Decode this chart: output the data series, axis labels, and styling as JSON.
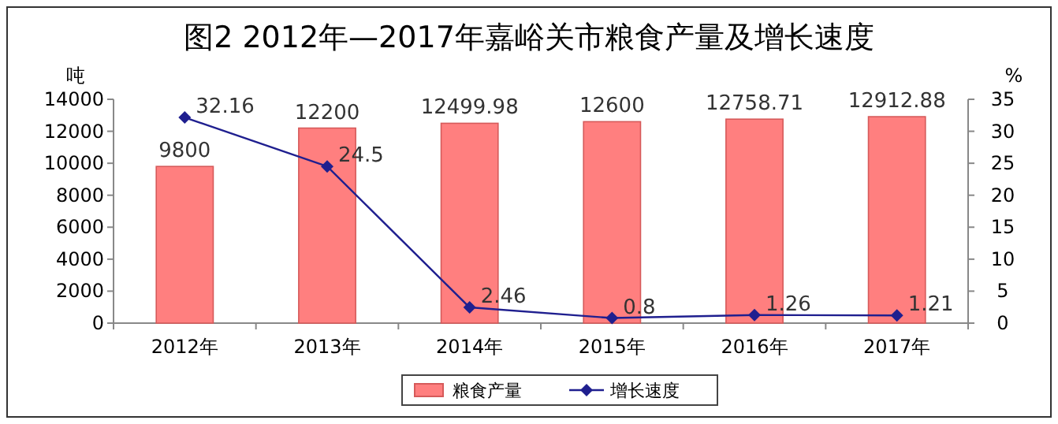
{
  "chart_data": {
    "type": "bar",
    "title": "图2  2012年—2017年嘉峪关市粮食产量及增长速度",
    "ylabel": "吨",
    "y2label": "%",
    "categories": [
      "2012年",
      "2013年",
      "2014年",
      "2015年",
      "2016年",
      "2017年"
    ],
    "series": [
      {
        "name": "粮食产量",
        "color": "#ff7f7f",
        "values": [
          9800,
          12200,
          12499.98,
          12600,
          12758.71,
          12912.88
        ]
      },
      {
        "name": "增长速度",
        "type": "line",
        "axis": "y2",
        "color": "#1f1f8f",
        "marker": "diamond",
        "values": [
          32.16,
          24.5,
          2.46,
          0.8,
          1.26,
          1.21
        ]
      }
    ],
    "ylim": [
      0,
      14000
    ],
    "yticks": [
      0,
      2000,
      4000,
      6000,
      8000,
      10000,
      12000,
      14000
    ],
    "y2lim": [
      0,
      35
    ],
    "y2ticks": [
      0,
      5,
      10,
      15,
      20,
      25,
      30,
      35
    ],
    "data_labels": true,
    "legend": "bottom"
  }
}
